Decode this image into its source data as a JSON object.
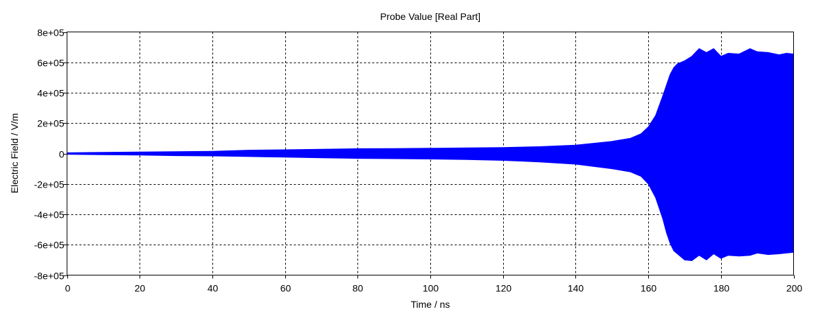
{
  "chart_data": {
    "type": "area",
    "title": "Probe Value [Real Part]",
    "xlabel": "Time / ns",
    "ylabel": "Electric Field / V/m",
    "xlim": [
      0,
      200
    ],
    "ylim": [
      -800000,
      800000
    ],
    "xticks": [
      0,
      20,
      40,
      60,
      80,
      100,
      120,
      140,
      160,
      180,
      200
    ],
    "xtick_labels": [
      "0",
      "20",
      "40",
      "60",
      "80",
      "100",
      "120",
      "140",
      "160",
      "180",
      "200"
    ],
    "yticks": [
      800000,
      600000,
      400000,
      200000,
      0,
      -200000,
      -400000,
      -600000,
      -800000
    ],
    "ytick_labels": [
      "8e+05",
      "6e+05",
      "4e+05",
      "2e+05",
      "0",
      "-2e+05",
      "-4e+05",
      "-6e+05",
      "-8e+05"
    ],
    "grid": true,
    "grid_style": "dashed",
    "series_color": "#0000ff",
    "series": [
      {
        "x": [
          0,
          10,
          20,
          30,
          40,
          50,
          60,
          70,
          80,
          90,
          100,
          110,
          120,
          130,
          140,
          150,
          155,
          158,
          160,
          162,
          164,
          165,
          166,
          167,
          168,
          170,
          172,
          174,
          176,
          178,
          180,
          182,
          185,
          188,
          190,
          193,
          196,
          198,
          200
        ],
        "upper": [
          5000,
          8000,
          10000,
          12000,
          15000,
          22000,
          25000,
          28000,
          32000,
          33000,
          35000,
          37000,
          40000,
          45000,
          55000,
          80000,
          100000,
          130000,
          175000,
          250000,
          380000,
          450000,
          520000,
          565000,
          590000,
          610000,
          640000,
          690000,
          665000,
          690000,
          640000,
          660000,
          655000,
          690000,
          670000,
          665000,
          650000,
          660000,
          655000
        ],
        "lower": [
          -5000,
          -8000,
          -10000,
          -14000,
          -16000,
          -20000,
          -24000,
          -28000,
          -32000,
          -34000,
          -36000,
          -40000,
          -45000,
          -55000,
          -70000,
          -100000,
          -120000,
          -150000,
          -200000,
          -290000,
          -430000,
          -520000,
          -590000,
          -640000,
          -660000,
          -700000,
          -705000,
          -670000,
          -700000,
          -660000,
          -690000,
          -670000,
          -675000,
          -670000,
          -655000,
          -665000,
          -660000,
          -655000,
          -650000
        ]
      }
    ]
  }
}
